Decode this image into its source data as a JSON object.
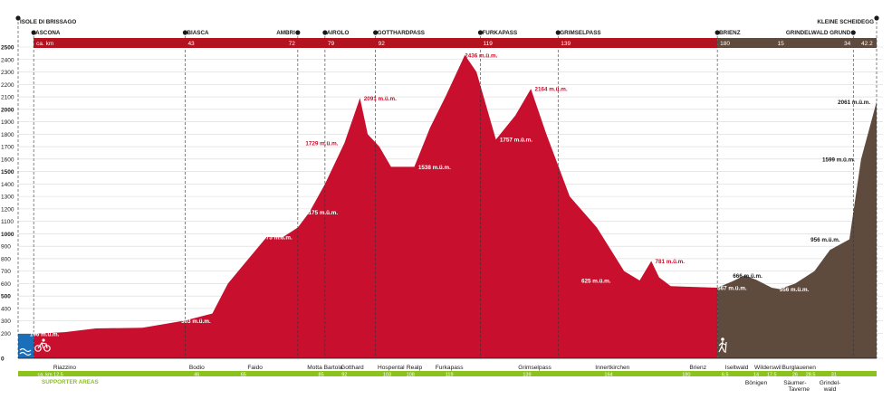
{
  "colors": {
    "run": "#c8102e",
    "bike_hike": "#5f4a3e",
    "swim": "#1b6fb8",
    "bar_red": "#b3121f",
    "green": "#8cc21e",
    "grid": "#d9d9d9",
    "ink": "#1a1a1a",
    "white": "#ffffff"
  },
  "chart_data": {
    "type": "area",
    "title": "",
    "xlabel": "",
    "ylabel": "",
    "x_unit": "ca. km",
    "xlim": [
      0,
      221
    ],
    "ylim": [
      0,
      2500
    ],
    "y_ticks": [
      0,
      200,
      300,
      400,
      500,
      600,
      700,
      800,
      900,
      1000,
      1100,
      1200,
      1300,
      1400,
      1500,
      1600,
      1700,
      1800,
      1900,
      2000,
      2100,
      2200,
      2300,
      2400,
      2500
    ],
    "y_bold_ticks": [
      0,
      500,
      1000,
      1500,
      2000,
      2500
    ],
    "grid": true,
    "segments": [
      {
        "name": "swim",
        "x_start": 0,
        "x_end": 4
      },
      {
        "name": "red",
        "x_start": 4,
        "x_end": 180
      },
      {
        "name": "brown",
        "x_start": 180,
        "x_end": 221
      }
    ],
    "profile": [
      [
        0,
        196
      ],
      [
        4,
        196
      ],
      [
        12,
        210
      ],
      [
        20,
        240
      ],
      [
        32,
        245
      ],
      [
        43,
        303
      ],
      [
        50,
        360
      ],
      [
        54,
        600
      ],
      [
        58,
        750
      ],
      [
        64,
        975
      ],
      [
        68,
        970
      ],
      [
        72,
        1050
      ],
      [
        75,
        1175
      ],
      [
        79,
        1400
      ],
      [
        84,
        1729
      ],
      [
        88,
        2091
      ],
      [
        90,
        1800
      ],
      [
        93,
        1700
      ],
      [
        96,
        1538
      ],
      [
        99,
        1538
      ],
      [
        102,
        1538
      ],
      [
        106,
        1850
      ],
      [
        110,
        2100
      ],
      [
        115,
        2436
      ],
      [
        118,
        2300
      ],
      [
        123,
        1757
      ],
      [
        128,
        1950
      ],
      [
        132,
        2164
      ],
      [
        136,
        1800
      ],
      [
        142,
        1300
      ],
      [
        149,
        1050
      ],
      [
        156,
        700
      ],
      [
        160,
        625
      ],
      [
        163,
        781
      ],
      [
        165,
        650
      ],
      [
        168,
        580
      ],
      [
        172,
        575
      ],
      [
        180,
        567
      ],
      [
        184,
        620
      ],
      [
        187,
        666
      ],
      [
        190,
        630
      ],
      [
        194,
        567
      ],
      [
        196,
        556
      ],
      [
        200,
        600
      ],
      [
        205,
        700
      ],
      [
        209,
        870
      ],
      [
        214,
        956
      ],
      [
        217,
        1599
      ],
      [
        221,
        2061
      ]
    ],
    "elevation_labels": [
      {
        "text": "196 m.ü.m.",
        "x": 3,
        "y": 196,
        "fill": "white"
      },
      {
        "text": "303 m.ü.m.",
        "x": 42,
        "y": 303,
        "fill": "white"
      },
      {
        "text": "975 m.ü.m.",
        "x": 63,
        "y": 975,
        "fill": "white"
      },
      {
        "text": "1175 m.ü.m.",
        "x": 74,
        "y": 1175,
        "fill": "white"
      },
      {
        "text": "1729 m.ü.m.",
        "x": 74,
        "y": 1729,
        "fill": "red"
      },
      {
        "text": "2091 m.ü.m.",
        "x": 89,
        "y": 2091,
        "fill": "red"
      },
      {
        "text": "1538 m.ü.m.",
        "x": 103,
        "y": 1538,
        "fill": "white"
      },
      {
        "text": "2436 m.ü.m.",
        "x": 115,
        "y": 2436,
        "fill": "red"
      },
      {
        "text": "1757 m.ü.m.",
        "x": 124,
        "y": 1757,
        "fill": "white"
      },
      {
        "text": "2164 m.ü.m.",
        "x": 133,
        "y": 2164,
        "fill": "red"
      },
      {
        "text": "625 m.ü.m.",
        "x": 145,
        "y": 625,
        "fill": "white"
      },
      {
        "text": "781 m.ü.m.",
        "x": 164,
        "y": 781,
        "fill": "red"
      },
      {
        "text": "567 m.ü.m.",
        "x": 180,
        "y": 567,
        "fill": "white"
      },
      {
        "text": "666 m.ü.m.",
        "x": 184,
        "y": 666,
        "fill": "dark"
      },
      {
        "text": "556 m.ü.m.",
        "x": 196,
        "y": 556,
        "fill": "white"
      },
      {
        "text": "956 m.ü.m.",
        "x": 204,
        "y": 956,
        "fill": "dark"
      },
      {
        "text": "1599 m.ü.m.",
        "x": 207,
        "y": 1599,
        "fill": "dark"
      },
      {
        "text": "2061 m.ü.m.",
        "x": 211,
        "y": 2061,
        "fill": "dark"
      }
    ],
    "passes": [
      {
        "name": "Isole di Brissago",
        "x": 0,
        "row": 0
      },
      {
        "name": "Ascona",
        "x": 4,
        "row": 1,
        "km": "ca. km"
      },
      {
        "name": "Biasca",
        "x": 43,
        "row": 1,
        "km": "43"
      },
      {
        "name": "Ambri",
        "x": 72,
        "row": 1,
        "km": "72",
        "right": true
      },
      {
        "name": "Airolo",
        "x": 79,
        "row": 1,
        "km": "79"
      },
      {
        "name": "Gotthardpass",
        "x": 92,
        "row": 1,
        "km": "92"
      },
      {
        "name": "Furkapass",
        "x": 119,
        "row": 1,
        "km": "119"
      },
      {
        "name": "Grimselpass",
        "x": 139,
        "row": 1,
        "km": "139"
      },
      {
        "name": "Brienz",
        "x": 180,
        "row": 1,
        "km": "180"
      },
      {
        "name": "Grindelwald Grund",
        "x": 215,
        "row": 1,
        "km": "34",
        "right": true
      },
      {
        "name": "Kleine Scheidegg",
        "x": 221,
        "row": 0,
        "right": true
      }
    ],
    "km_bar": {
      "extra_labels": [
        {
          "text": "15",
          "x": 195
        },
        {
          "text": "42.2",
          "x": 220,
          "right": true
        }
      ]
    },
    "supporter_bar": {
      "label": "SUPPORTER AREAS",
      "km_labels": [
        {
          "text": "ca. km 12.5",
          "x": 5
        },
        {
          "text": "46",
          "x": 46
        },
        {
          "text": "65",
          "x": 58
        },
        {
          "text": "85",
          "x": 78
        },
        {
          "text": "92",
          "x": 84
        },
        {
          "text": "103",
          "x": 95
        },
        {
          "text": "108",
          "x": 101
        },
        {
          "text": "119",
          "x": 111
        },
        {
          "text": "139",
          "x": 131
        },
        {
          "text": "164",
          "x": 152
        },
        {
          "text": "180",
          "x": 172
        },
        {
          "text": "6.5",
          "x": 182
        },
        {
          "text": "14",
          "x": 190
        },
        {
          "text": "17.5",
          "x": 194
        },
        {
          "text": "26",
          "x": 200
        },
        {
          "text": "28.5",
          "x": 204
        },
        {
          "text": "31",
          "x": 210
        }
      ],
      "areas": [
        {
          "name": "Riazzino",
          "x": 12,
          "row": 0
        },
        {
          "name": "Bodio",
          "x": 46,
          "row": 0
        },
        {
          "name": "Faido",
          "x": 61,
          "row": 0
        },
        {
          "name": "Motta Bartola",
          "x": 79,
          "row": 0
        },
        {
          "name": "Gotthard",
          "x": 86,
          "row": 0
        },
        {
          "name": "Hospental",
          "x": 96,
          "row": 0
        },
        {
          "name": "Realp",
          "x": 102,
          "row": 0
        },
        {
          "name": "Furkapass",
          "x": 111,
          "row": 0
        },
        {
          "name": "Grimselpass",
          "x": 133,
          "row": 0
        },
        {
          "name": "Innertkirchen",
          "x": 153,
          "row": 0
        },
        {
          "name": "Brienz",
          "x": 175,
          "row": 0
        },
        {
          "name": "Iseltwald",
          "x": 185,
          "row": 0
        },
        {
          "name": "Wilderswil",
          "x": 193,
          "row": 0
        },
        {
          "name": "Burglauenen",
          "x": 201,
          "row": 0
        },
        {
          "name": "Bönigen",
          "x": 190,
          "row": 1
        },
        {
          "name": "Säumer-",
          "x": 200,
          "row": 1
        },
        {
          "name": "Taverne",
          "x": 201,
          "row": 2
        },
        {
          "name": "Grindel-",
          "x": 209,
          "row": 1
        },
        {
          "name": "wald",
          "x": 209,
          "row": 2
        }
      ]
    }
  },
  "icons": {
    "swim": "swim-icon",
    "bike": "bike-icon",
    "hike": "hiker-icon"
  }
}
